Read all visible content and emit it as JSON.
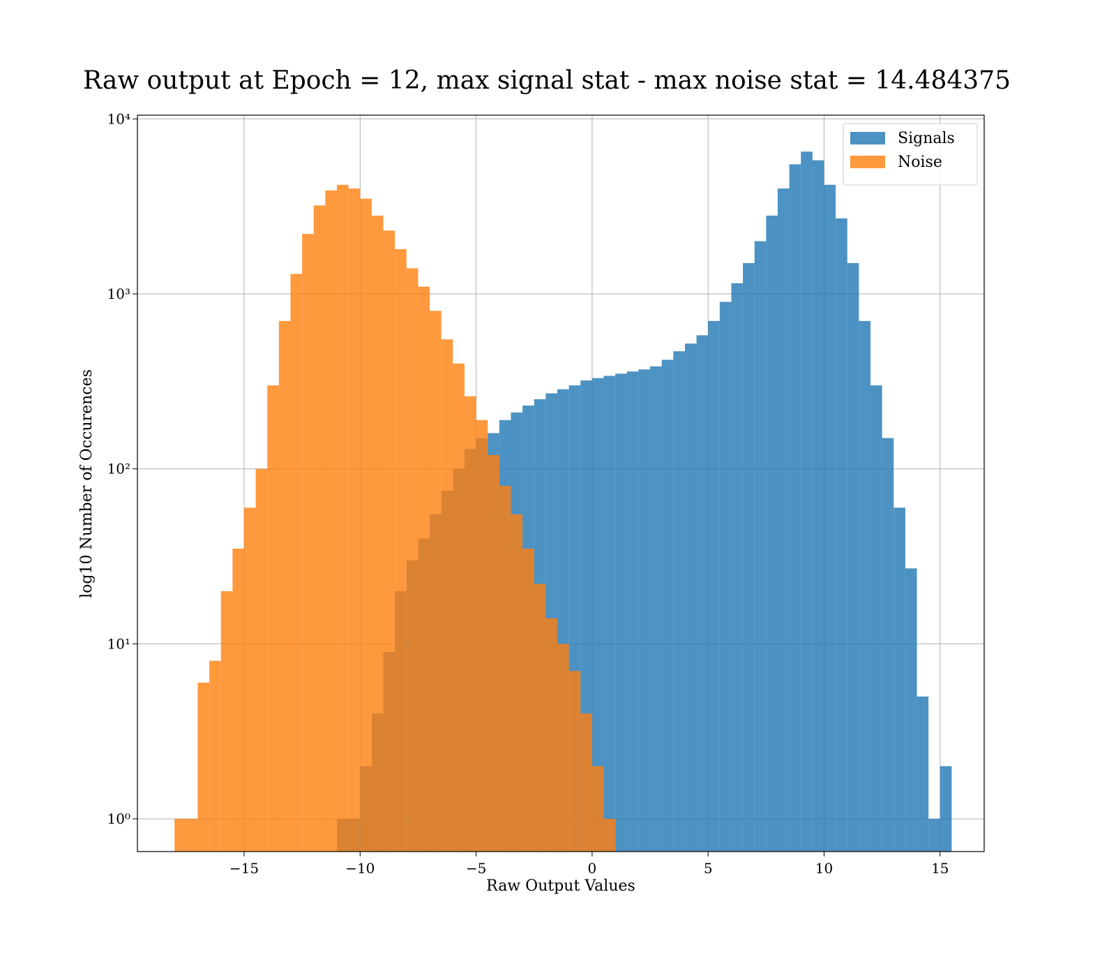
{
  "chart_data": {
    "type": "histogram",
    "title": "Raw output at Epoch = 12, max signal stat - max noise stat = 14.484375",
    "x_label": "Raw Output Values",
    "y_label": "log10 Number of Occurences",
    "log_y": true,
    "grid": true,
    "legend": "upper right",
    "xlim": [
      -19.6,
      16.9
    ],
    "ylim": [
      0.65,
      10500
    ],
    "xticks": [
      {
        "value": -15,
        "label": "−15"
      },
      {
        "value": -10,
        "label": "−10"
      },
      {
        "value": -5,
        "label": "−5"
      },
      0,
      5,
      10,
      15
    ],
    "yticks": [
      {
        "value": 1,
        "label": "10⁰"
      },
      {
        "value": 10,
        "label": "10¹"
      },
      {
        "value": 100,
        "label": "10²"
      },
      {
        "value": 1000,
        "label": "10³"
      },
      {
        "value": 10000,
        "label": "10⁴"
      }
    ],
    "series": [
      {
        "name": "Signals",
        "color": "#1f77b4",
        "bins": [
          -11,
          -10.5,
          -10,
          -9.5,
          -9,
          -8.5,
          -8,
          -7.5,
          -7,
          -6.5,
          -6,
          -5.5,
          -5,
          -4.5,
          -4,
          -3.5,
          -3,
          -2.5,
          -2,
          -1.5,
          -1,
          -0.5,
          0,
          0.5,
          1,
          1.5,
          2,
          2.5,
          3,
          3.5,
          4,
          4.5,
          5,
          5.5,
          6,
          6.5,
          7,
          7.5,
          8,
          8.5,
          9,
          9.5,
          10,
          10.5,
          11,
          11.5,
          12,
          12.5,
          13,
          13.5,
          14,
          14.5,
          15,
          15.5
        ],
        "values": [
          1,
          1,
          2,
          4,
          9,
          20,
          30,
          40,
          55,
          75,
          100,
          130,
          150,
          160,
          190,
          210,
          230,
          250,
          270,
          285,
          300,
          320,
          330,
          340,
          350,
          360,
          370,
          385,
          420,
          470,
          520,
          580,
          700,
          900,
          1150,
          1500,
          2000,
          2800,
          4000,
          5500,
          6500,
          5800,
          4200,
          2700,
          1500,
          700,
          300,
          150,
          60,
          27,
          5,
          1,
          2
        ]
      },
      {
        "name": "Noise",
        "color": "#ff7f0e",
        "bins": [
          -18,
          -17.5,
          -17,
          -16.5,
          -16,
          -15.5,
          -15,
          -14.5,
          -14,
          -13.5,
          -13,
          -12.5,
          -12,
          -11.5,
          -11,
          -10.5,
          -10,
          -9.5,
          -9,
          -8.5,
          -8,
          -7.5,
          -7,
          -6.5,
          -6,
          -5.5,
          -5,
          -4.5,
          -4,
          -3.5,
          -3,
          -2.5,
          -2,
          -1.5,
          -1,
          -0.5,
          0,
          0.5,
          1
        ],
        "values": [
          1,
          1,
          6,
          8,
          20,
          35,
          60,
          100,
          300,
          700,
          1300,
          2200,
          3200,
          3900,
          4200,
          4000,
          3500,
          2800,
          2300,
          1800,
          1400,
          1100,
          800,
          550,
          400,
          260,
          190,
          120,
          80,
          55,
          35,
          22,
          14,
          10,
          7,
          4,
          2,
          1
        ]
      }
    ]
  }
}
